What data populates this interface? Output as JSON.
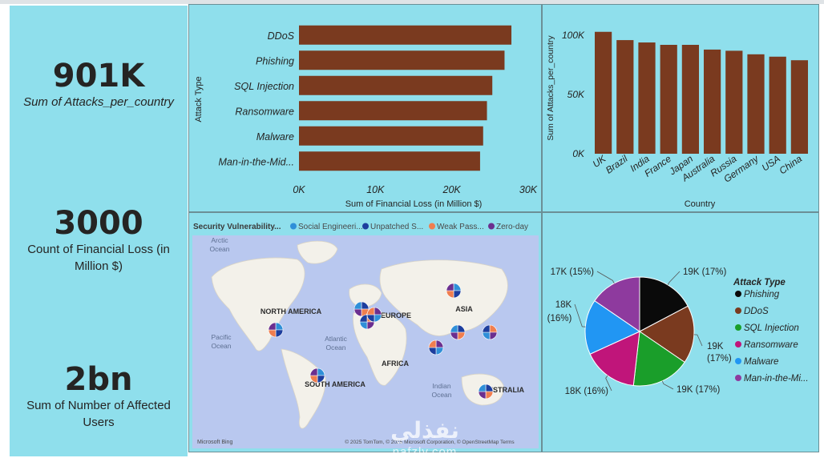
{
  "kpis": [
    {
      "value": "901K",
      "label": "Sum of Attacks_per_country",
      "italic": true
    },
    {
      "value": "3000",
      "label": "Count of Financial Loss (in Million $)",
      "italic": false
    },
    {
      "value": "2bn",
      "label": "Sum of Number of Affected Users",
      "italic": false
    }
  ],
  "bar_chart": {
    "type": "bar",
    "orientation": "horizontal",
    "categories": [
      "DDoS",
      "Phishing",
      "SQL Injection",
      "Ransomware",
      "Malware",
      "Man-in-the-Mid..."
    ],
    "values": [
      27800,
      26900,
      25300,
      24600,
      24100,
      23700
    ],
    "xlabel": "Sum of Financial Loss (in Million $)",
    "ylabel": "Attack Type",
    "xlim": [
      0,
      30000
    ],
    "xticks": [
      "0K",
      "10K",
      "20K",
      "30K"
    ],
    "bar_color": "#7a3a1f"
  },
  "col_chart": {
    "type": "bar",
    "categories": [
      "UK",
      "Brazil",
      "India",
      "France",
      "Japan",
      "Australia",
      "Russia",
      "Germany",
      "USA",
      "China"
    ],
    "values": [
      103000,
      96000,
      94000,
      92000,
      92000,
      88000,
      87000,
      84000,
      82000,
      79000
    ],
    "xlabel": "Country",
    "ylabel": "Sum of Attacks_per_country",
    "ylim": [
      0,
      115000
    ],
    "yticks": [
      "0K",
      "50K",
      "100K"
    ],
    "bar_color": "#7a3a1f"
  },
  "map": {
    "legend_title": "Security Vulnerability...",
    "legend": [
      {
        "label": "Social Engineeri...",
        "color": "#2f8fd8"
      },
      {
        "label": "Unpatched S...",
        "color": "#1d3e9e"
      },
      {
        "label": "Weak Pass...",
        "color": "#f07e4f"
      },
      {
        "label": "Zero-day",
        "color": "#6b2f8f"
      }
    ],
    "labels": {
      "arctic": "Arctic Ocean",
      "north_america": "NORTH AMERICA",
      "europe": "EUROPE",
      "asia": "ASIA",
      "pacific": "Pacific Ocean",
      "atlantic": "Atlantic Ocean",
      "africa": "AFRICA",
      "south_america": "SOUTH AMERICA",
      "indian": "Indian Ocean",
      "australia": "AUSTRALIA",
      "brand": "Microsoft Bing",
      "copyright": "© 2025 TomTom, © 2025 Microsoft Corporation, © OpenStreetMap Terms"
    }
  },
  "pie_chart": {
    "type": "pie",
    "legend_title": "Attack Type",
    "slices": [
      {
        "name": "Phishing",
        "value": 19000,
        "label": "19K (17%)",
        "color": "#0a0a0a"
      },
      {
        "name": "DDoS",
        "value": 19000,
        "label": "19K (17%)",
        "color": "#7a3a1f"
      },
      {
        "name": "SQL Injection",
        "value": 19000,
        "label": "19K (17%)",
        "color": "#1a9e2a"
      },
      {
        "name": "Ransomware",
        "value": 18000,
        "label": "18K (16%)",
        "color": "#c0157a"
      },
      {
        "name": "Malware",
        "value": 18000,
        "label": "18K (16%)",
        "color": "#2196f3"
      },
      {
        "name": "Man-in-the-Mi...",
        "value": 17000,
        "label": "17K (15%)",
        "color": "#8e3a9e"
      }
    ]
  },
  "watermark": {
    "arabic": "نفذلي",
    "latin": "nafzly.com"
  }
}
